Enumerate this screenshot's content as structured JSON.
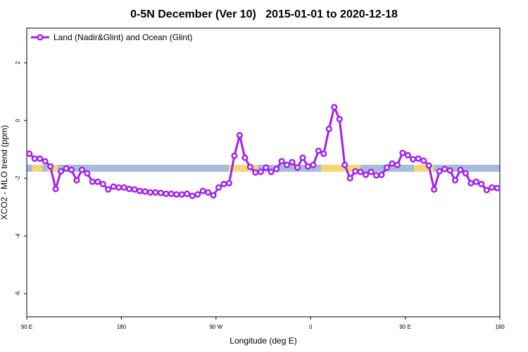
{
  "chart_data": {
    "type": "line",
    "title": "0-5N December (Ver 10)   2015-01-01 to 2020-12-18",
    "xlabel": "Longitude (deg E)",
    "ylabel": "XCO2 - MLO trend (ppm)",
    "xlim": [
      90,
      540
    ],
    "ylim": [
      -6.8,
      3.2
    ],
    "xticks": [
      {
        "value": 90,
        "label": "90 E"
      },
      {
        "value": 180,
        "label": "180"
      },
      {
        "value": 270,
        "label": "90 W"
      },
      {
        "value": 360,
        "label": "0"
      },
      {
        "value": 450,
        "label": "90 E"
      },
      {
        "value": 540,
        "label": "180"
      }
    ],
    "yticks": [
      -6,
      -4,
      -2,
      0,
      2
    ],
    "legend": "top-left",
    "x": [
      92.5,
      97.5,
      102.5,
      107.5,
      112.5,
      117.5,
      122.5,
      127.5,
      132.5,
      137.5,
      142.5,
      147.5,
      152.5,
      157.5,
      162.5,
      167.5,
      172.5,
      177.5,
      182.5,
      187.5,
      192.5,
      197.5,
      202.5,
      207.5,
      212.5,
      217.5,
      222.5,
      227.5,
      232.5,
      237.5,
      242.5,
      247.5,
      252.5,
      257.5,
      262.5,
      267.5,
      272.5,
      277.5,
      282.5,
      287.5,
      292.5,
      297.5,
      302.5,
      307.5,
      312.5,
      317.5,
      322.5,
      327.5,
      332.5,
      337.5,
      342.5,
      347.5,
      352.5,
      357.5,
      362.5,
      367.5,
      372.5,
      377.5,
      382.5,
      387.5,
      392.5,
      397.5,
      402.5,
      407.5,
      412.5,
      417.5,
      422.5,
      427.5,
      432.5,
      437.5,
      442.5,
      447.5,
      452.5,
      457.5,
      462.5,
      467.5,
      472.5,
      477.5,
      482.5,
      487.5,
      492.5,
      497.5,
      502.5,
      507.5,
      512.5,
      517.5,
      522.5,
      527.5,
      532.5,
      537.5
    ],
    "series": [
      {
        "name": "Land (Nadir&Glint) and Ocean (Glint)",
        "color": "#a020f0",
        "values": [
          -1.15,
          -1.32,
          -1.32,
          -1.41,
          -1.59,
          -2.37,
          -1.76,
          -1.66,
          -1.71,
          -2.07,
          -1.71,
          -1.83,
          -2.12,
          -2.12,
          -2.2,
          -2.39,
          -2.29,
          -2.32,
          -2.32,
          -2.37,
          -2.39,
          -2.44,
          -2.46,
          -2.49,
          -2.49,
          -2.51,
          -2.54,
          -2.54,
          -2.56,
          -2.56,
          -2.54,
          -2.61,
          -2.56,
          -2.44,
          -2.49,
          -2.59,
          -2.32,
          -2.2,
          -2.17,
          -1.22,
          -0.51,
          -1.29,
          -1.61,
          -1.8,
          -1.78,
          -1.63,
          -1.78,
          -1.68,
          -1.41,
          -1.54,
          -1.44,
          -1.63,
          -1.29,
          -1.59,
          -1.54,
          -1.05,
          -1.15,
          -0.29,
          0.46,
          0.05,
          -1.54,
          -2.0,
          -1.76,
          -1.78,
          -1.88,
          -1.78,
          -1.9,
          -1.88,
          -1.63,
          -1.49,
          -1.54,
          -1.12,
          -1.2,
          -1.34,
          -1.32,
          -1.39,
          -1.56,
          -2.39,
          -1.76,
          -1.68,
          -1.73,
          -2.07,
          -1.71,
          -1.83,
          -2.17,
          -2.12,
          -2.2,
          -2.41,
          -2.32,
          -2.34
        ]
      }
    ]
  }
}
